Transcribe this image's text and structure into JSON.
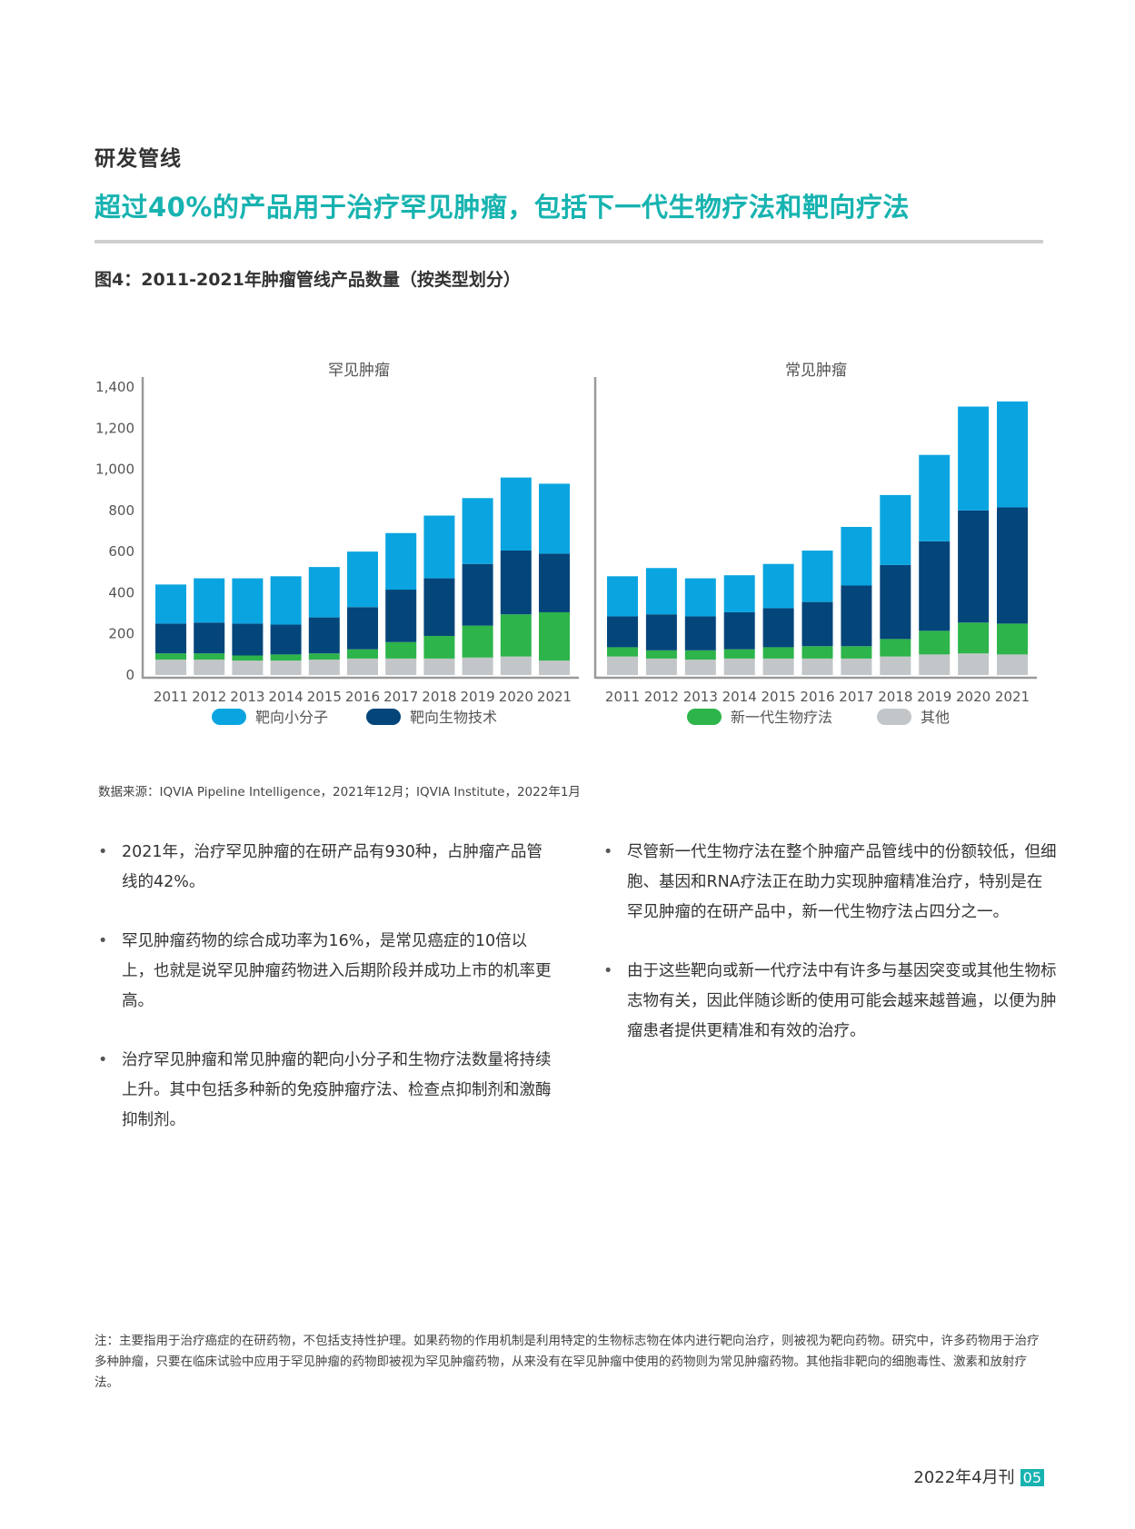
{
  "page": {
    "section_label": "研发管线",
    "headline": "超过40%的产品用于治疗罕见肿瘤，包括下一代生物疗法和靶向疗法",
    "figure_title": "图4：2011-2021年肿瘤管线产品数量（按类型划分）",
    "source": "数据来源：IQVIA Pipeline Intelligence，2021年12月；IQVIA Institute，2022年1月",
    "left_bullets": [
      "2021年，治疗罕见肿瘤的在研产品有930种，占肿瘤产品管线的42%。",
      "罕见肿瘤药物的综合成功率为16%，是常见癌症的10倍以上，也就是说罕见肿瘤药物进入后期阶段并成功上市的机率更高。",
      "治疗罕见肿瘤和常见肿瘤的靶向小分子和生物疗法数量将持续上升。其中包括多种新的免疫肿瘤疗法、检查点抑制剂和激酶抑制剂。"
    ],
    "right_bullets": [
      "尽管新一代生物疗法在整个肿瘤产品管线中的份额较低，但细胞、基因和RNA疗法正在助力实现肿瘤精准治疗，特别是在罕见肿瘤的在研产品中，新一代生物疗法占四分之一。",
      "由于这些靶向或新一代疗法中有许多与基因突变或其他生物标志物有关，因此伴随诊断的使用可能会越来越普遍，以便为肿瘤患者提供更精准和有效的治疗。"
    ],
    "note": "注：主要指用于治疗癌症的在研药物，不包括支持性护理。如果药物的作用机制是利用特定的生物标志物在体内进行靶向治疗，则被视为靶向药物。研究中，许多药物用于治疗多种肿瘤，只要在临床试验中应用于罕见肿瘤的药物即被视为罕见肿瘤药物，从来没有在罕见肿瘤中使用的药物则为常见肿瘤药物。其他指非靶向的细胞毒性、激素和放射疗法。",
    "footer_date": "2022年4月刊",
    "page_number": "05"
  },
  "chart_data": {
    "type": "bar",
    "stacked": true,
    "y_ticks": [
      "0",
      "200",
      "400",
      "600",
      "800",
      "1,000",
      "1,200",
      "1,400"
    ],
    "ylim": [
      0,
      1400
    ],
    "categories": [
      "2011",
      "2012",
      "2013",
      "2014",
      "2015",
      "2016",
      "2017",
      "2018",
      "2019",
      "2020",
      "2021"
    ],
    "legend": [
      {
        "name": "靶向小分子",
        "color": "#0aa5e0"
      },
      {
        "name": "靶向生物技术",
        "color": "#04457a"
      },
      {
        "name": "新一代生物疗法",
        "color": "#2db44a"
      },
      {
        "name": "其他",
        "color": "#c2c6c9"
      }
    ],
    "panels": [
      {
        "title": "罕见肿瘤",
        "series": [
          {
            "name": "其他",
            "color": "#c2c6c9",
            "values": [
              75,
              75,
              70,
              70,
              75,
              80,
              80,
              80,
              85,
              90,
              70
            ]
          },
          {
            "name": "新一代生物疗法",
            "color": "#2db44a",
            "values": [
              30,
              30,
              25,
              30,
              30,
              45,
              80,
              110,
              155,
              205,
              235
            ]
          },
          {
            "name": "靶向生物技术",
            "color": "#04457a",
            "values": [
              145,
              150,
              155,
              145,
              175,
              205,
              255,
              280,
              300,
              310,
              285
            ]
          },
          {
            "name": "靶向小分子",
            "color": "#0aa5e0",
            "values": [
              190,
              215,
              220,
              235,
              245,
              270,
              275,
              305,
              320,
              355,
              340
            ]
          }
        ]
      },
      {
        "title": "常见肿瘤",
        "series": [
          {
            "name": "其他",
            "color": "#c2c6c9",
            "values": [
              90,
              80,
              75,
              80,
              80,
              80,
              80,
              90,
              100,
              105,
              100
            ]
          },
          {
            "name": "新一代生物疗法",
            "color": "#2db44a",
            "values": [
              45,
              40,
              45,
              45,
              55,
              60,
              60,
              85,
              115,
              150,
              150
            ]
          },
          {
            "name": "靶向生物技术",
            "color": "#04457a",
            "values": [
              150,
              175,
              165,
              180,
              190,
              215,
              295,
              360,
              435,
              545,
              565
            ]
          },
          {
            "name": "靶向小分子",
            "color": "#0aa5e0",
            "values": [
              195,
              225,
              185,
              180,
              215,
              250,
              285,
              340,
              420,
              505,
              515
            ]
          }
        ]
      }
    ]
  }
}
